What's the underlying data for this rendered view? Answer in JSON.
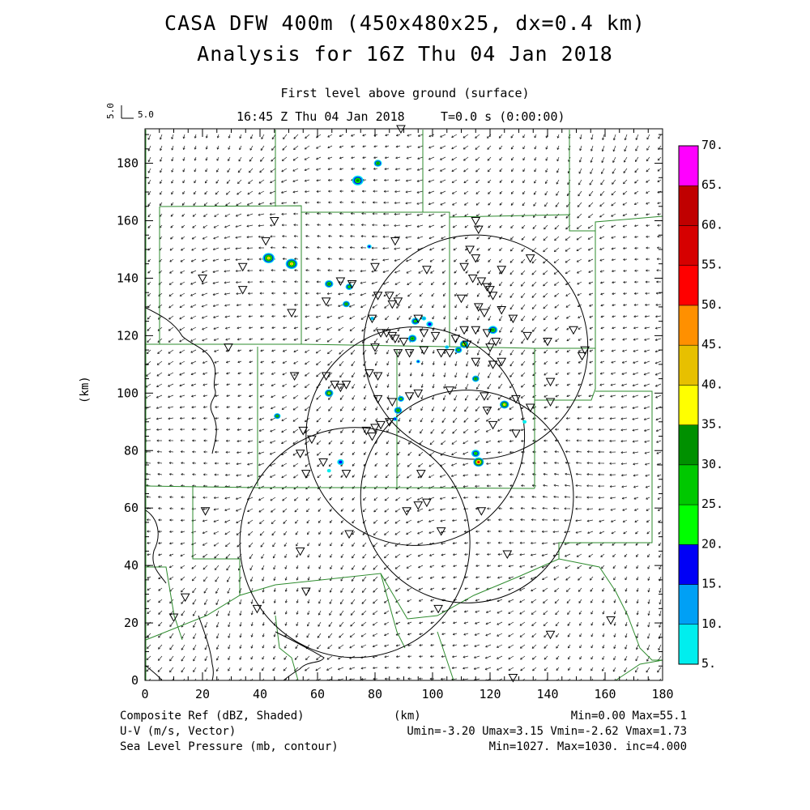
{
  "header": {
    "title_line1": "CASA DFW 400m (450x480x25, dx=0.4 km)",
    "title_line2": "Analysis for 16Z Thu 04 Jan 2018",
    "level": "First level above ground (surface)",
    "valid_time": "16:45 Z Thu 04 Jan 2018",
    "forecast_time": "T=0.0 s (0:00:00)"
  },
  "vector_key": {
    "value_vertical": "5.0",
    "value_horizontal": "5.0"
  },
  "axes": {
    "x_label": "(km)",
    "y_label": "(km)",
    "x_ticks": [
      "0",
      "20",
      "40",
      "60",
      "80",
      "100",
      "120",
      "140",
      "160",
      "180"
    ],
    "y_ticks": [
      "0",
      "20",
      "40",
      "60",
      "80",
      "100",
      "120",
      "140",
      "160",
      "180"
    ],
    "x_range": [
      0,
      180
    ],
    "y_range": [
      0,
      192
    ]
  },
  "colorbar": {
    "labels": [
      "5.",
      "10.",
      "15.",
      "20.",
      "25.",
      "30.",
      "35.",
      "40.",
      "45.",
      "50.",
      "55.",
      "60.",
      "65.",
      "70."
    ],
    "colors": [
      "#00eeee",
      "#00a0f5",
      "#0000f6",
      "#00ff00",
      "#00c800",
      "#009000",
      "#ffff00",
      "#e7c000",
      "#ff9000",
      "#ff0000",
      "#d60000",
      "#c00000",
      "#ff00ff"
    ]
  },
  "footer": {
    "field1": "Composite Ref (dBZ, Shaded)",
    "field2": "U-V (m/s, Vector)",
    "field3": "Sea Level Pressure (mb, contour)",
    "xunit": "(km)",
    "stats1": "Min=0.00 Max=55.1",
    "stats2": "Umin=-3.20 Umax=3.15 Vmin=-2.62 Vmax=1.73",
    "stats3": "Min=1027. Max=1030. inc=4.000"
  },
  "radars": [
    {
      "x": 115,
      "y": 116,
      "r": 39
    },
    {
      "x": 94,
      "y": 85,
      "r": 38
    },
    {
      "x": 73,
      "y": 48,
      "r": 40
    },
    {
      "x": 112,
      "y": 64,
      "r": 37
    }
  ],
  "stations": [
    [
      45,
      160
    ],
    [
      42,
      153
    ],
    [
      34,
      144
    ],
    [
      20,
      140
    ],
    [
      34,
      136
    ],
    [
      51,
      128
    ],
    [
      29,
      116
    ],
    [
      63,
      132
    ],
    [
      68,
      139
    ],
    [
      72,
      138
    ],
    [
      81,
      134
    ],
    [
      85,
      134
    ],
    [
      86,
      131
    ],
    [
      88,
      132
    ],
    [
      79,
      126
    ],
    [
      82,
      121
    ],
    [
      84,
      121
    ],
    [
      86,
      120
    ],
    [
      80,
      116
    ],
    [
      87,
      119
    ],
    [
      90,
      118
    ],
    [
      92,
      114
    ],
    [
      97,
      115
    ],
    [
      88,
      114
    ],
    [
      95,
      126
    ],
    [
      97,
      121
    ],
    [
      101,
      120
    ],
    [
      103,
      114
    ],
    [
      108,
      119
    ],
    [
      111,
      122
    ],
    [
      112,
      117
    ],
    [
      106,
      114
    ],
    [
      111,
      144
    ],
    [
      113,
      150
    ],
    [
      115,
      147
    ],
    [
      114,
      140
    ],
    [
      117,
      139
    ],
    [
      119,
      137
    ],
    [
      120,
      136
    ],
    [
      121,
      134
    ],
    [
      116,
      130
    ],
    [
      118,
      128
    ],
    [
      124,
      129
    ],
    [
      128,
      126
    ],
    [
      133,
      120
    ],
    [
      115,
      122
    ],
    [
      119,
      121
    ],
    [
      122,
      118
    ],
    [
      120,
      116
    ],
    [
      124,
      111
    ],
    [
      121,
      110
    ],
    [
      140,
      118
    ],
    [
      149,
      122
    ],
    [
      152,
      113
    ],
    [
      153,
      115
    ],
    [
      141,
      104
    ],
    [
      134,
      147
    ],
    [
      124,
      143
    ],
    [
      115,
      160
    ],
    [
      110,
      133
    ],
    [
      116,
      157
    ],
    [
      87,
      153
    ],
    [
      80,
      144
    ],
    [
      98,
      143
    ],
    [
      52,
      106
    ],
    [
      63,
      106
    ],
    [
      66,
      103
    ],
    [
      68,
      102
    ],
    [
      70,
      103
    ],
    [
      78,
      107
    ],
    [
      81,
      106
    ],
    [
      81,
      98
    ],
    [
      79,
      85
    ],
    [
      77,
      87
    ],
    [
      80,
      88
    ],
    [
      82,
      89
    ],
    [
      85,
      90
    ],
    [
      86,
      97
    ],
    [
      92,
      99
    ],
    [
      95,
      100
    ],
    [
      106,
      101
    ],
    [
      115,
      111
    ],
    [
      118,
      99
    ],
    [
      119,
      94
    ],
    [
      121,
      89
    ],
    [
      129,
      98
    ],
    [
      129,
      86
    ],
    [
      134,
      95
    ],
    [
      141,
      97
    ],
    [
      55,
      87
    ],
    [
      58,
      84
    ],
    [
      54,
      79
    ],
    [
      62,
      76
    ],
    [
      70,
      72
    ],
    [
      56,
      72
    ],
    [
      96,
      72
    ],
    [
      98,
      62
    ],
    [
      95,
      61
    ],
    [
      91,
      59
    ],
    [
      21,
      59
    ],
    [
      14,
      29
    ],
    [
      10,
      22
    ],
    [
      39,
      25
    ],
    [
      56,
      31
    ],
    [
      54,
      45
    ],
    [
      71,
      51
    ],
    [
      117,
      59
    ],
    [
      126,
      44
    ],
    [
      103,
      52
    ],
    [
      102,
      25
    ],
    [
      141,
      16
    ],
    [
      162,
      21
    ],
    [
      128,
      1
    ],
    [
      89,
      192
    ]
  ],
  "echoes": [
    {
      "x": 74,
      "y": 174,
      "r": 1.7,
      "peak": 30
    },
    {
      "x": 81,
      "y": 180,
      "r": 1.2,
      "peak": 30
    },
    {
      "x": 43,
      "y": 147,
      "r": 1.8,
      "peak": 40
    },
    {
      "x": 51,
      "y": 145,
      "r": 1.8,
      "peak": 40
    },
    {
      "x": 64,
      "y": 138,
      "r": 1.3,
      "peak": 30
    },
    {
      "x": 71,
      "y": 137,
      "r": 1.1,
      "peak": 25
    },
    {
      "x": 70,
      "y": 131,
      "r": 1.1,
      "peak": 30
    },
    {
      "x": 78,
      "y": 151,
      "r": 0.7,
      "peak": 15
    },
    {
      "x": 79,
      "y": 126,
      "r": 0.6,
      "peak": 10
    },
    {
      "x": 94,
      "y": 125,
      "r": 1.2,
      "peak": 25
    },
    {
      "x": 97,
      "y": 126,
      "r": 0.7,
      "peak": 10
    },
    {
      "x": 99,
      "y": 124,
      "r": 1.0,
      "peak": 15
    },
    {
      "x": 93,
      "y": 119,
      "r": 1.3,
      "peak": 30
    },
    {
      "x": 95,
      "y": 111,
      "r": 0.6,
      "peak": 15
    },
    {
      "x": 121,
      "y": 122,
      "r": 1.4,
      "peak": 30
    },
    {
      "x": 109,
      "y": 115,
      "r": 1.1,
      "peak": 25
    },
    {
      "x": 111,
      "y": 117,
      "r": 1.3,
      "peak": 40
    },
    {
      "x": 105,
      "y": 116,
      "r": 0.6,
      "peak": 10
    },
    {
      "x": 115,
      "y": 105,
      "r": 1.1,
      "peak": 30
    },
    {
      "x": 64,
      "y": 100,
      "r": 1.3,
      "peak": 35
    },
    {
      "x": 46,
      "y": 92,
      "r": 1.0,
      "peak": 30
    },
    {
      "x": 125,
      "y": 96,
      "r": 1.4,
      "peak": 40
    },
    {
      "x": 89,
      "y": 98,
      "r": 1.0,
      "peak": 25
    },
    {
      "x": 88,
      "y": 94,
      "r": 1.2,
      "peak": 30
    },
    {
      "x": 87,
      "y": 91,
      "r": 0.7,
      "peak": 15
    },
    {
      "x": 132,
      "y": 90,
      "r": 0.6,
      "peak": 5
    },
    {
      "x": 115,
      "y": 79,
      "r": 1.3,
      "peak": 25
    },
    {
      "x": 116,
      "y": 76,
      "r": 1.6,
      "peak": 55
    },
    {
      "x": 68,
      "y": 76,
      "r": 1.0,
      "peak": 15
    },
    {
      "x": 64,
      "y": 73,
      "r": 0.6,
      "peak": 5
    }
  ],
  "county_lines": [
    [
      [
        0,
        180
      ],
      [
        160,
        163
      ]
    ],
    [
      [
        0,
        180
      ],
      [
        115,
        118
      ]
    ],
    [
      [
        0,
        180
      ],
      [
        66,
        68
      ]
    ],
    [
      [
        83,
        83
      ],
      [
        0,
        68
      ]
    ],
    [
      [
        180,
        180
      ],
      [
        0,
        192
      ]
    ]
  ]
}
